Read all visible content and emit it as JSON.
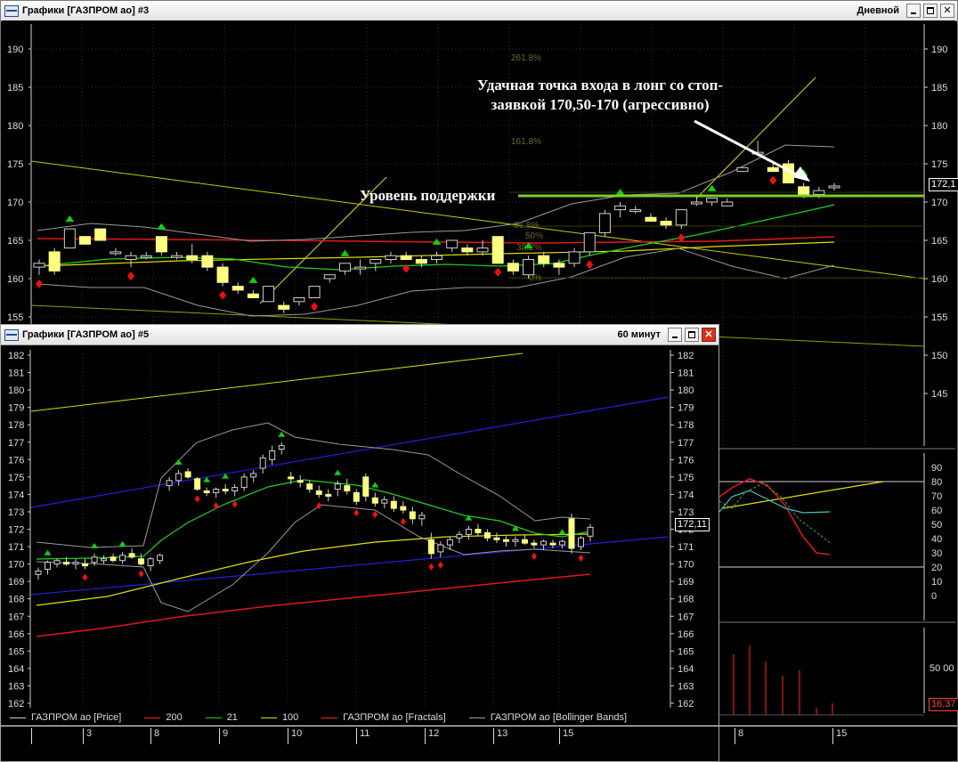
{
  "window_daily": {
    "title": "Графики [ГАЗПРОМ ао] #3",
    "interval": "Дневной",
    "y_ticks": [
      "190",
      "185",
      "180",
      "175",
      "170",
      "165",
      "160",
      "155"
    ],
    "y_ticks_right": [
      "190",
      "185",
      "180",
      "175",
      "170",
      "165",
      "160",
      "155",
      "150",
      "145"
    ],
    "fib_labels": [
      "261.8%",
      "161.8%",
      "61.8%",
      "50%",
      "38.2%",
      "0%"
    ],
    "annotation": "Удачная точка входа в лонг со стоп-заявкой 170,50-170 (агрессивно)",
    "support_label": "Уровень поддержки",
    "last_price": "172,1",
    "osc_ticks": [
      "90",
      "80",
      "70",
      "60",
      "50",
      "40",
      "30",
      "20",
      "10",
      "0"
    ],
    "volume_tick": "50 00",
    "volume_last": "16.37",
    "date_ticks": [
      "8",
      "15"
    ]
  },
  "window_hourly": {
    "title": "Графики [ГАЗПРОМ ао] #5",
    "interval": "60 минут",
    "y_ticks": [
      "182",
      "181",
      "180",
      "179",
      "178",
      "177",
      "176",
      "175",
      "174",
      "173",
      "172",
      "171",
      "170",
      "169",
      "168",
      "167",
      "166",
      "165",
      "164",
      "163",
      "162"
    ],
    "last_price": "172,11",
    "legend": [
      {
        "label": "ГАЗПРОМ ао [Price]",
        "color": "#cfcfcf"
      },
      {
        "label": "200",
        "color": "#ff2020"
      },
      {
        "label": "21",
        "color": "#20d020"
      },
      {
        "label": "100",
        "color": "#e0e000"
      },
      {
        "label": "ГАЗПРОМ ао [Fractals]",
        "color": "#ff2020"
      },
      {
        "label": "ГАЗПРОМ ао [Bollinger Bands]",
        "color": "#9a9a9a"
      }
    ],
    "date_ticks": [
      "3",
      "8",
      "9",
      "10",
      "11",
      "12",
      "13",
      "15"
    ]
  },
  "chart_data": [
    {
      "type": "candlestick",
      "title": "Графики [ГАЗПРОМ ао] #3",
      "interval": "Дневной",
      "ylim": [
        143,
        193
      ],
      "support_level": 170.7,
      "candles": [
        [
          161.5,
          162.5,
          160.5,
          162.0
        ],
        [
          163.5,
          164.0,
          160.5,
          161.0
        ],
        [
          164.0,
          166.5,
          164.0,
          166.5
        ],
        [
          165.5,
          165.5,
          164.5,
          164.5
        ],
        [
          166.5,
          166.5,
          165.0,
          165.0
        ],
        [
          163.5,
          164.0,
          163.0,
          163.5
        ],
        [
          162.5,
          163.5,
          161.5,
          163.0
        ],
        [
          163.0,
          163.5,
          162.5,
          163.0
        ],
        [
          165.5,
          165.5,
          163.0,
          163.5
        ],
        [
          163.0,
          163.5,
          162.5,
          163.0
        ],
        [
          163.0,
          164.5,
          162.0,
          162.5
        ],
        [
          163.0,
          163.5,
          161.0,
          161.5
        ],
        [
          161.5,
          162.0,
          159.0,
          159.5
        ],
        [
          159.0,
          159.5,
          158.0,
          158.5
        ],
        [
          158.0,
          158.5,
          157.5,
          157.5
        ],
        [
          157.0,
          159.0,
          157.0,
          159.0
        ],
        [
          156.5,
          157.0,
          155.5,
          156.0
        ],
        [
          157.0,
          157.5,
          156.5,
          157.5
        ],
        [
          157.5,
          159.0,
          157.5,
          159.0
        ],
        [
          160.0,
          160.5,
          159.5,
          160.5
        ],
        [
          161.0,
          162.0,
          160.5,
          162.0
        ],
        [
          161.5,
          162.5,
          160.5,
          161.5
        ],
        [
          162.0,
          162.5,
          161.0,
          162.5
        ],
        [
          162.5,
          163.5,
          162.0,
          163.0
        ],
        [
          163.0,
          163.5,
          162.5,
          162.5
        ],
        [
          162.5,
          163.0,
          161.5,
          162.0
        ],
        [
          162.5,
          163.5,
          162.0,
          163.0
        ],
        [
          164.0,
          165.0,
          163.5,
          165.0
        ],
        [
          164.0,
          164.5,
          163.0,
          163.5
        ],
        [
          163.5,
          165.0,
          163.0,
          164.0
        ],
        [
          165.5,
          165.5,
          162.0,
          162.0
        ],
        [
          162.0,
          162.5,
          160.5,
          161.0
        ],
        [
          160.5,
          163.0,
          160.0,
          162.5
        ],
        [
          163.0,
          163.5,
          161.5,
          162.0
        ],
        [
          162.0,
          162.5,
          160.5,
          161.5
        ],
        [
          162.0,
          164.0,
          161.5,
          163.5
        ],
        [
          163.5,
          166.0,
          163.0,
          166.0
        ],
        [
          166.0,
          169.0,
          165.5,
          168.5
        ],
        [
          169.0,
          170.0,
          168.0,
          169.5
        ],
        [
          169.0,
          169.5,
          168.5,
          169.0
        ],
        [
          168.0,
          168.5,
          167.5,
          167.5
        ],
        [
          167.5,
          168.0,
          166.5,
          167.0
        ],
        [
          167.0,
          169.0,
          166.5,
          169.0
        ],
        [
          170.0,
          171.0,
          169.5,
          170.0
        ],
        [
          170.0,
          170.5,
          169.5,
          170.5
        ],
        [
          169.5,
          170.5,
          169.5,
          170.0
        ],
        [
          174.0,
          174.5,
          174.0,
          174.5
        ],
        [
          176.5,
          178.0,
          176.0,
          176.5
        ],
        [
          174.5,
          175.0,
          174.0,
          174.0
        ],
        [
          175.0,
          175.5,
          172.5,
          172.5
        ],
        [
          172.0,
          172.5,
          170.5,
          171.0
        ],
        [
          171.0,
          172.0,
          170.5,
          171.5
        ],
        [
          172.0,
          172.5,
          171.5,
          172.1
        ]
      ]
    },
    {
      "type": "candlestick",
      "title": "Графики [ГАЗПРОМ ао] #5",
      "interval": "60 минут",
      "ylim": [
        161.4,
        182.2
      ],
      "series": [
        {
          "name": "200",
          "values": [
            165.4,
            169.2
          ]
        },
        {
          "name": "100",
          "values": [
            167.4,
            171.0
          ]
        },
        {
          "name": "21",
          "values": [
            169.9,
            171.3
          ]
        }
      ],
      "candles": [
        [
          169.4,
          169.8,
          169.1,
          169.6
        ],
        [
          169.7,
          170.2,
          169.4,
          170.1
        ],
        [
          170.0,
          170.3,
          169.8,
          170.2
        ],
        [
          170.1,
          170.4,
          169.9,
          170.0
        ],
        [
          170.0,
          170.3,
          169.7,
          170.1
        ],
        [
          170.0,
          170.3,
          169.7,
          169.9
        ],
        [
          170.1,
          170.6,
          169.9,
          170.4
        ],
        [
          170.2,
          170.5,
          170.0,
          170.3
        ],
        [
          170.4,
          170.6,
          170.1,
          170.2
        ],
        [
          170.2,
          170.7,
          170.0,
          170.5
        ],
        [
          170.6,
          170.9,
          170.3,
          170.4
        ],
        [
          170.3,
          170.6,
          169.9,
          170.0
        ],
        [
          169.9,
          170.4,
          169.6,
          170.3
        ],
        [
          170.2,
          170.6,
          170.0,
          170.5
        ],
        [
          174.5,
          175.0,
          174.2,
          174.8
        ],
        [
          174.8,
          175.4,
          174.5,
          175.2
        ],
        [
          175.3,
          175.5,
          174.9,
          175.0
        ],
        [
          174.9,
          175.0,
          174.2,
          174.3
        ],
        [
          174.2,
          174.4,
          173.9,
          174.1
        ],
        [
          174.1,
          174.4,
          173.8,
          174.3
        ],
        [
          174.3,
          174.6,
          174.0,
          174.2
        ],
        [
          174.2,
          174.6,
          173.9,
          174.4
        ],
        [
          174.4,
          175.2,
          174.2,
          175.0
        ],
        [
          175.0,
          175.4,
          174.7,
          175.2
        ],
        [
          175.5,
          176.3,
          175.2,
          176.1
        ],
        [
          176.0,
          176.8,
          175.7,
          176.5
        ],
        [
          176.6,
          177.0,
          176.3,
          176.8
        ],
        [
          175.0,
          175.3,
          174.6,
          174.9
        ],
        [
          174.8,
          175.1,
          174.4,
          174.7
        ],
        [
          174.6,
          174.8,
          174.1,
          174.3
        ],
        [
          174.2,
          174.5,
          173.8,
          174.0
        ],
        [
          174.0,
          174.3,
          173.6,
          173.9
        ],
        [
          174.3,
          174.8,
          173.9,
          174.6
        ],
        [
          174.5,
          174.9,
          174.0,
          174.2
        ],
        [
          174.1,
          174.3,
          173.4,
          173.6
        ],
        [
          175.0,
          175.2,
          173.6,
          173.9
        ],
        [
          173.8,
          174.1,
          173.3,
          173.5
        ],
        [
          173.5,
          173.9,
          173.2,
          173.7
        ],
        [
          173.6,
          173.9,
          173.0,
          173.2
        ],
        [
          173.3,
          173.6,
          172.9,
          173.1
        ],
        [
          173.0,
          173.3,
          172.3,
          172.6
        ],
        [
          172.6,
          173.0,
          172.2,
          172.8
        ],
        [
          171.4,
          171.8,
          170.3,
          170.6
        ],
        [
          170.7,
          171.3,
          170.4,
          171.1
        ],
        [
          171.1,
          171.6,
          170.8,
          171.4
        ],
        [
          171.5,
          171.9,
          171.2,
          171.7
        ],
        [
          171.7,
          172.2,
          171.4,
          172.0
        ],
        [
          172.0,
          172.3,
          171.6,
          171.8
        ],
        [
          171.8,
          172.0,
          171.3,
          171.5
        ],
        [
          171.5,
          171.8,
          171.2,
          171.4
        ],
        [
          171.4,
          171.6,
          171.0,
          171.3
        ],
        [
          171.3,
          171.6,
          171.0,
          171.4
        ],
        [
          171.4,
          171.7,
          171.1,
          171.2
        ],
        [
          171.2,
          171.4,
          170.9,
          171.1
        ],
        [
          171.1,
          171.4,
          170.8,
          171.3
        ],
        [
          171.2,
          171.4,
          170.9,
          171.1
        ],
        [
          171.1,
          171.4,
          170.9,
          171.3
        ],
        [
          172.6,
          172.9,
          170.6,
          170.9
        ],
        [
          171.0,
          171.6,
          170.8,
          171.5
        ],
        [
          171.6,
          172.3,
          171.3,
          172.11
        ]
      ]
    }
  ]
}
